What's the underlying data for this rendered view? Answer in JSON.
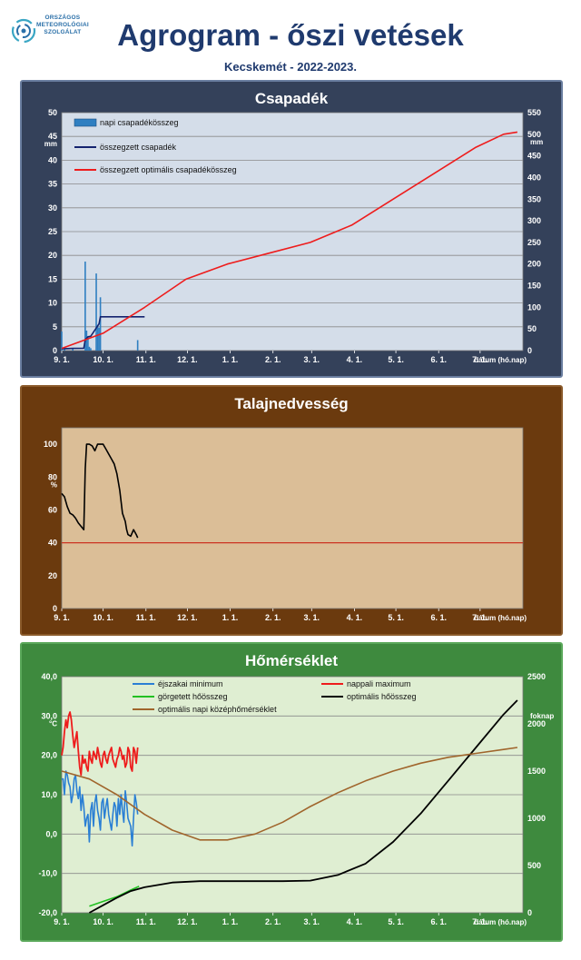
{
  "header": {
    "logo_line1": "ORSZÁGOS",
    "logo_line2": "METEOROLÓGIAI",
    "logo_line3": "SZOLGÁLAT",
    "title": "Agrogram - őszi vetések",
    "subtitle": "Kecskemét - 2022-2023."
  },
  "x_axis": {
    "tick_labels": [
      "9. 1.",
      "10. 1.",
      "11. 1.",
      "12. 1.",
      "1. 1.",
      "2. 1.",
      "3. 1.",
      "4. 1.",
      "5. 1.",
      "6. 1.",
      "7. 1."
    ],
    "label": "dátum (hó.nap)"
  },
  "colors": {
    "panel1_bg": "#34415a",
    "panel2_bg": "#6b3a0e",
    "panel3_bg": "#3e8a3e",
    "plot1_bg": "#d4dde9",
    "plot2_bg": "#dbbe97",
    "plot3_bg": "#dfeed2"
  },
  "chart_data": [
    {
      "type": "bar",
      "title": "Csapadék",
      "ylabel": "mm",
      "y2label": "mm",
      "ylim": [
        0,
        50
      ],
      "y2lim": [
        0,
        550
      ],
      "y_ticks": [
        0,
        5,
        10,
        15,
        20,
        25,
        30,
        35,
        40,
        45,
        50
      ],
      "y2_ticks": [
        0,
        50,
        100,
        150,
        200,
        250,
        300,
        350,
        400,
        450,
        500,
        550
      ],
      "grid": true,
      "legend_position": "top-left",
      "series": [
        {
          "name": "napi csapadékösszeg",
          "kind": "bar",
          "color": "#2f7fc1",
          "x": [
            0,
            2,
            8,
            17,
            18,
            19,
            20,
            21,
            25,
            26,
            27,
            28,
            55
          ],
          "y": [
            4,
            0.6,
            0.5,
            18.7,
            4.2,
            2.8,
            0.8,
            0.5,
            16.2,
            5.2,
            4.8,
            11.2,
            2.2
          ]
        },
        {
          "name": "összegzett csapadék",
          "kind": "line",
          "color": "#14236e",
          "x": [
            0,
            8,
            16,
            17,
            19,
            21,
            25,
            27,
            28,
            60
          ],
          "y": [
            4,
            5,
            5.5,
            25,
            32,
            33,
            52,
            62,
            78,
            78
          ]
        },
        {
          "name": "összegzett optimális  csapadékösszeg",
          "kind": "line",
          "color": "#ee1c1c",
          "x": [
            0,
            30,
            60,
            90,
            120,
            150,
            180,
            210,
            240,
            270,
            300,
            320,
            330
          ],
          "y": [
            5,
            40,
            100,
            165,
            200,
            225,
            250,
            290,
            350,
            410,
            470,
            500,
            505
          ]
        }
      ]
    },
    {
      "type": "line",
      "title": "Talajnedvesség",
      "ylabel": "%",
      "ylim": [
        0,
        110
      ],
      "y_ticks": [
        0,
        20,
        40,
        60,
        80,
        100
      ],
      "grid": false,
      "reference_line": {
        "y": 40,
        "color": "#cc3322"
      },
      "series": [
        {
          "name": "talajnedvesség",
          "kind": "line",
          "color": "#000000",
          "x": [
            0,
            2,
            4,
            6,
            8,
            10,
            12,
            14,
            15,
            16,
            17,
            18,
            20,
            22,
            24,
            26,
            28,
            30,
            32,
            34,
            36,
            38,
            40,
            42,
            44,
            46,
            47,
            48,
            50,
            52,
            54,
            55
          ],
          "y": [
            70,
            68,
            62,
            58,
            57,
            55,
            52,
            50,
            49,
            48,
            85,
            100,
            100,
            99,
            96,
            100,
            100,
            100,
            97,
            94,
            91,
            88,
            82,
            72,
            58,
            53,
            48,
            45,
            44,
            48,
            45,
            43
          ]
        }
      ]
    },
    {
      "type": "line",
      "title": "Hőmérséklet",
      "ylabel": "°C",
      "y2label": "foknap",
      "ylim": [
        -20,
        40
      ],
      "y2lim": [
        0,
        2500
      ],
      "y_ticks": [
        -20,
        -10,
        0,
        10,
        20,
        30,
        40
      ],
      "y_tick_labels": [
        "-20,0",
        "-10,0",
        "0,0",
        "10,0",
        "20,0",
        "30,0",
        "40,0"
      ],
      "y2_ticks": [
        0,
        500,
        1000,
        1500,
        2000,
        2500
      ],
      "grid": true,
      "legend_position": "top",
      "series": [
        {
          "name": "éjszakai minimum",
          "kind": "line",
          "color": "#2a7fd4",
          "x": [
            0,
            1,
            2,
            3,
            4,
            5,
            6,
            7,
            8,
            9,
            10,
            11,
            12,
            13,
            14,
            15,
            16,
            17,
            18,
            19,
            20,
            21,
            22,
            23,
            24,
            25,
            26,
            27,
            28,
            29,
            30,
            31,
            32,
            33,
            34,
            35,
            36,
            37,
            38,
            39,
            40,
            41,
            42,
            43,
            44,
            45,
            46,
            47,
            48,
            49,
            50,
            51,
            52,
            53,
            54,
            55
          ],
          "y": [
            14,
            14,
            10,
            16,
            15,
            13,
            12,
            8,
            10,
            14,
            15,
            11,
            9,
            12,
            6,
            10,
            7,
            2,
            4,
            5,
            -2,
            6,
            8,
            2,
            8,
            10,
            6,
            4,
            1,
            8,
            9,
            4,
            7,
            9,
            5,
            3,
            1,
            5,
            8,
            7,
            2,
            9,
            5,
            10,
            6,
            3,
            11,
            8,
            4,
            3,
            2,
            -3,
            4,
            10,
            8,
            5
          ]
        },
        {
          "name": "nappali maximum",
          "kind": "line",
          "color": "#ee1c1c",
          "x": [
            0,
            1,
            2,
            3,
            4,
            5,
            6,
            7,
            8,
            9,
            10,
            11,
            12,
            13,
            14,
            15,
            16,
            17,
            18,
            19,
            20,
            21,
            22,
            23,
            24,
            25,
            26,
            27,
            28,
            29,
            30,
            31,
            32,
            33,
            34,
            35,
            36,
            37,
            38,
            39,
            40,
            41,
            42,
            43,
            44,
            45,
            46,
            47,
            48,
            49,
            50,
            51,
            52,
            53,
            54,
            55
          ],
          "y": [
            20,
            22,
            26,
            29,
            27,
            30,
            31,
            29,
            25,
            22,
            24,
            26,
            21,
            17,
            15,
            20,
            18,
            19,
            17,
            16,
            21,
            19,
            18,
            21,
            20,
            19,
            22,
            20,
            18,
            17,
            20,
            21,
            19,
            18,
            20,
            21,
            22,
            19,
            18,
            17,
            19,
            20,
            22,
            21,
            19,
            20,
            17,
            18,
            22,
            21,
            17,
            16,
            22,
            21,
            18,
            22
          ]
        },
        {
          "name": "görgetett hőösszeg",
          "kind": "line",
          "color": "#22c022",
          "x": [
            20,
            30,
            40,
            50,
            56
          ],
          "y": [
            70,
            120,
            170,
            240,
            280
          ]
        },
        {
          "name": "optimális hőösszeg",
          "kind": "line",
          "color": "#000000",
          "x": [
            20,
            30,
            40,
            50,
            60,
            80,
            100,
            120,
            140,
            160,
            180,
            200,
            220,
            240,
            260,
            280,
            300,
            320,
            330
          ],
          "y": [
            0,
            80,
            160,
            230,
            270,
            320,
            335,
            335,
            335,
            335,
            340,
            400,
            520,
            750,
            1050,
            1400,
            1750,
            2100,
            2250
          ]
        },
        {
          "name": "optimális napi középhőmérséklet",
          "kind": "line",
          "color": "#a0652c",
          "x": [
            0,
            20,
            40,
            60,
            80,
            100,
            120,
            140,
            160,
            180,
            200,
            220,
            240,
            260,
            280,
            300,
            320,
            330
          ],
          "y": [
            16,
            14,
            10,
            5,
            1,
            -1.5,
            -1.5,
            0,
            3,
            7,
            10.5,
            13.5,
            16,
            18,
            19.5,
            20.5,
            21.5,
            22
          ]
        }
      ]
    }
  ]
}
